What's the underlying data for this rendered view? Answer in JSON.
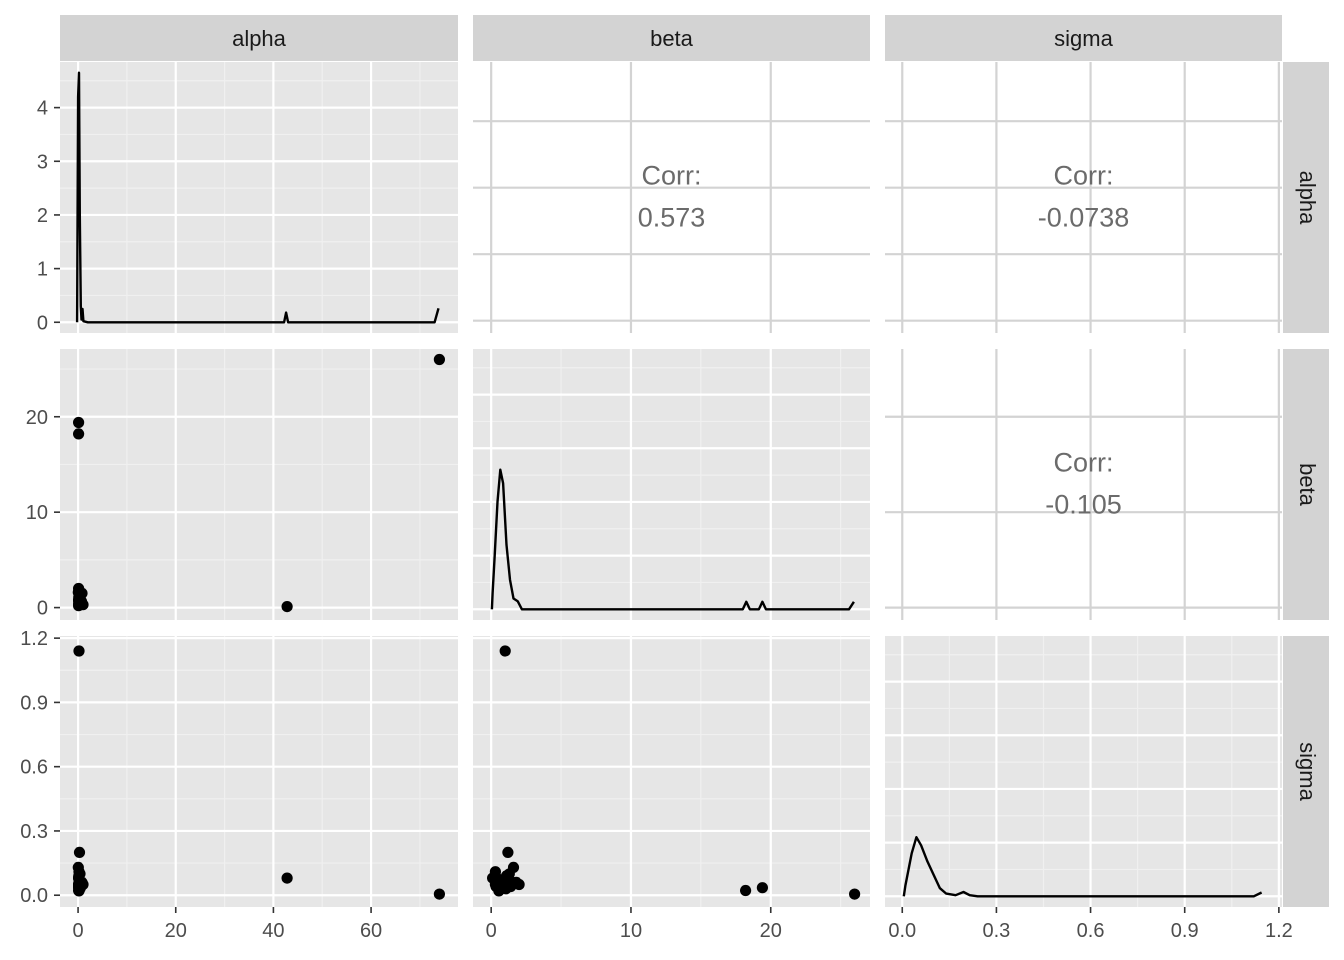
{
  "chart_data": {
    "type": "scatter_matrix",
    "variables": [
      "alpha",
      "beta",
      "sigma"
    ],
    "column_strips": [
      "alpha",
      "beta",
      "sigma"
    ],
    "row_strips": [
      "alpha",
      "beta",
      "sigma"
    ],
    "axes": {
      "alpha": {
        "lim": [
          -3.7,
          77.8
        ],
        "ticks": [
          0,
          20,
          40,
          60
        ],
        "tick_labels": [
          "0",
          "20",
          "40",
          "60"
        ]
      },
      "beta": {
        "lim": [
          -1.3,
          27.1
        ],
        "ticks": [
          0,
          10,
          20
        ],
        "tick_labels": [
          "0",
          "10",
          "20"
        ]
      },
      "sigma": {
        "lim": [
          -0.055,
          1.21
        ],
        "ticks": [
          0.0,
          0.3,
          0.6,
          0.9,
          1.2
        ],
        "tick_labels": [
          "0.0",
          "0.3",
          "0.6",
          "0.9",
          "1.2"
        ]
      }
    },
    "density_axis": {
      "lim": [
        -0.2,
        4.85
      ],
      "ticks": [
        0,
        1,
        2,
        3,
        4
      ],
      "tick_labels": [
        "0",
        "1",
        "2",
        "3",
        "4"
      ]
    },
    "correlations": [
      {
        "row": "alpha",
        "col": "beta",
        "label": "Corr:",
        "value": "0.573"
      },
      {
        "row": "alpha",
        "col": "sigma",
        "label": "Corr:",
        "value": "-0.0738"
      },
      {
        "row": "beta",
        "col": "sigma",
        "label": "Corr:",
        "value": "-0.105"
      }
    ],
    "densities": {
      "alpha": [
        [
          -0.2,
          0
        ],
        [
          0,
          4.2
        ],
        [
          0.2,
          4.65
        ],
        [
          0.35,
          2.0
        ],
        [
          0.55,
          0.3
        ],
        [
          0.7,
          0.05
        ],
        [
          0.9,
          0.25
        ],
        [
          1.1,
          0.02
        ],
        [
          2,
          0
        ],
        [
          42.2,
          0
        ],
        [
          42.6,
          0.18
        ],
        [
          43.0,
          0
        ],
        [
          73,
          0
        ],
        [
          73.8,
          0.26
        ]
      ],
      "beta": [
        [
          0.05,
          0
        ],
        [
          0.1,
          0.3
        ],
        [
          0.25,
          1.0
        ],
        [
          0.45,
          2.0
        ],
        [
          0.65,
          2.6
        ],
        [
          0.85,
          2.35
        ],
        [
          1.1,
          1.2
        ],
        [
          1.35,
          0.55
        ],
        [
          1.6,
          0.2
        ],
        [
          1.9,
          0.15
        ],
        [
          2.2,
          0
        ],
        [
          18,
          0
        ],
        [
          18.25,
          0.14
        ],
        [
          18.5,
          0
        ],
        [
          19.15,
          0
        ],
        [
          19.4,
          0.14
        ],
        [
          19.65,
          0
        ],
        [
          25.6,
          0
        ],
        [
          25.95,
          0.14
        ]
      ],
      "sigma": [
        [
          0.005,
          0
        ],
        [
          0.01,
          0.2
        ],
        [
          0.03,
          0.8
        ],
        [
          0.045,
          1.1
        ],
        [
          0.06,
          0.95
        ],
        [
          0.08,
          0.65
        ],
        [
          0.1,
          0.4
        ],
        [
          0.12,
          0.15
        ],
        [
          0.14,
          0.05
        ],
        [
          0.17,
          0.02
        ],
        [
          0.195,
          0.08
        ],
        [
          0.215,
          0.02
        ],
        [
          0.24,
          0
        ],
        [
          1.12,
          0
        ],
        [
          1.145,
          0.07
        ]
      ]
    },
    "points": [
      {
        "alpha": 0.1,
        "beta": 19.4,
        "sigma": 0.035
      },
      {
        "alpha": 0.1,
        "beta": 18.2,
        "sigma": 0.022
      },
      {
        "alpha": 74.0,
        "beta": 26.0,
        "sigma": 0.005
      },
      {
        "alpha": 42.8,
        "beta": 0.1,
        "sigma": 0.08
      },
      {
        "alpha": 0.2,
        "beta": 1.0,
        "sigma": 1.14
      },
      {
        "alpha": 0.3,
        "beta": 1.2,
        "sigma": 0.2
      },
      {
        "alpha": 0.1,
        "beta": 2.0,
        "sigma": 0.05
      },
      {
        "alpha": 0.2,
        "beta": 1.8,
        "sigma": 0.06
      },
      {
        "alpha": 0.05,
        "beta": 1.6,
        "sigma": 0.13
      },
      {
        "alpha": 0.4,
        "beta": 1.3,
        "sigma": 0.1
      },
      {
        "alpha": 0.15,
        "beta": 1.1,
        "sigma": 0.09
      },
      {
        "alpha": 0.25,
        "beta": 0.9,
        "sigma": 0.07
      },
      {
        "alpha": 0.1,
        "beta": 0.8,
        "sigma": 0.04
      },
      {
        "alpha": 0.3,
        "beta": 0.7,
        "sigma": 0.06
      },
      {
        "alpha": 0.2,
        "beta": 0.6,
        "sigma": 0.03
      },
      {
        "alpha": 0.5,
        "beta": 0.5,
        "sigma": 0.05
      },
      {
        "alpha": 0.1,
        "beta": 0.4,
        "sigma": 0.08
      },
      {
        "alpha": 0.2,
        "beta": 0.3,
        "sigma": 0.11
      },
      {
        "alpha": 0.1,
        "beta": 0.2,
        "sigma": 0.08
      },
      {
        "alpha": 0.3,
        "beta": 0.35,
        "sigma": 0.04
      },
      {
        "alpha": 0.2,
        "beta": 0.55,
        "sigma": 0.02
      },
      {
        "alpha": 0.1,
        "beta": 0.75,
        "sigma": 0.05
      },
      {
        "alpha": 0.4,
        "beta": 1.05,
        "sigma": 0.03
      },
      {
        "alpha": 0.6,
        "beta": 1.4,
        "sigma": 0.04
      },
      {
        "alpha": 0.7,
        "beta": 0.65,
        "sigma": 0.055
      },
      {
        "alpha": 1.0,
        "beta": 0.3,
        "sigma": 0.05
      },
      {
        "alpha": 0.8,
        "beta": 1.5,
        "sigma": 0.06
      }
    ],
    "grid": true,
    "colors": {
      "panel": "#e6e6e6",
      "strip": "#d3d3d3",
      "grid_major": "#ffffff",
      "grid_minor": "#f0f0f0",
      "marks": "#000000",
      "corr_text": "#6b6b6b",
      "tick_text": "#4d4d4d"
    }
  }
}
